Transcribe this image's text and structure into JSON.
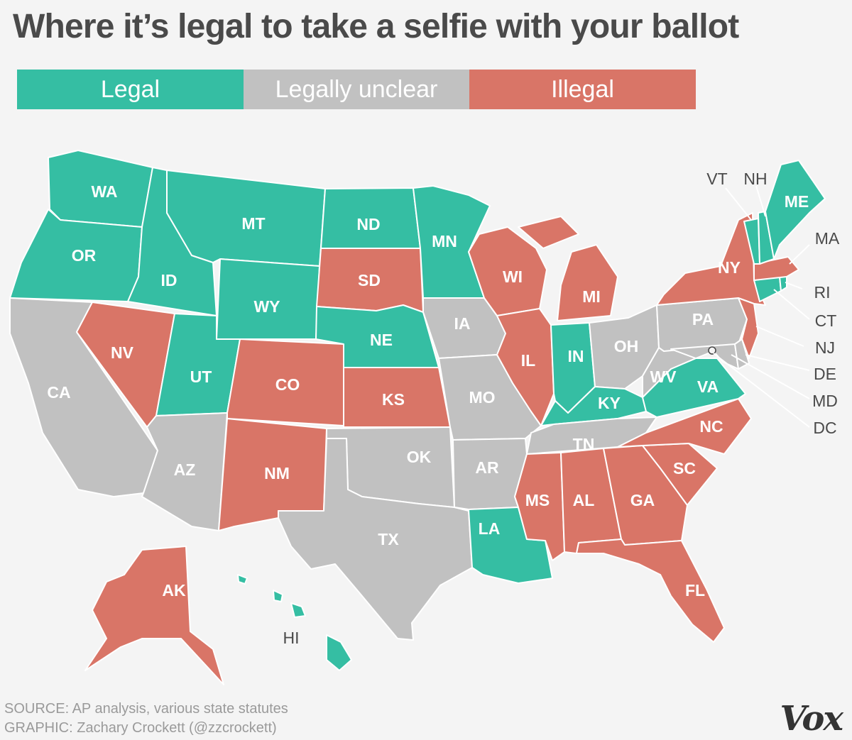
{
  "title": "Where it’s legal to take a selfie with your ballot",
  "legend": [
    {
      "label": "Legal",
      "status": "legal",
      "color": "#35bea3"
    },
    {
      "label": "Legally unclear",
      "status": "unclear",
      "color": "#c1c1c1"
    },
    {
      "label": "Illegal",
      "status": "illegal",
      "color": "#d97567"
    }
  ],
  "states": {
    "WA": "legal",
    "OR": "legal",
    "ID": "legal",
    "MT": "legal",
    "WY": "legal",
    "ND": "legal",
    "MN": "legal",
    "NE": "legal",
    "UT": "legal",
    "IN": "legal",
    "KY": "legal",
    "VA": "legal",
    "LA": "legal",
    "HI": "legal",
    "VT": "legal",
    "NH": "legal",
    "ME": "legal",
    "CT": "legal",
    "RI": "legal",
    "CA": "unclear",
    "AZ": "unclear",
    "TX": "unclear",
    "OK": "unclear",
    "AR": "unclear",
    "MO": "unclear",
    "IA": "unclear",
    "OH": "unclear",
    "PA": "unclear",
    "WV": "unclear",
    "TN": "unclear",
    "MD": "unclear",
    "DE": "unclear",
    "DC": "unclear",
    "NV": "illegal",
    "CO": "illegal",
    "NM": "illegal",
    "SD": "illegal",
    "KS": "illegal",
    "WI": "illegal",
    "IL": "illegal",
    "MI": "illegal",
    "MS": "illegal",
    "AL": "illegal",
    "GA": "illegal",
    "FL": "illegal",
    "SC": "illegal",
    "NC": "illegal",
    "NY": "illegal",
    "NJ": "illegal",
    "MA": "illegal",
    "AK": "illegal"
  },
  "footer": {
    "source": "SOURCE: AP analysis, various state statutes",
    "graphic": "GRAPHIC: Zachary Crockett (@zzcrockett)",
    "logo": "Vox"
  }
}
